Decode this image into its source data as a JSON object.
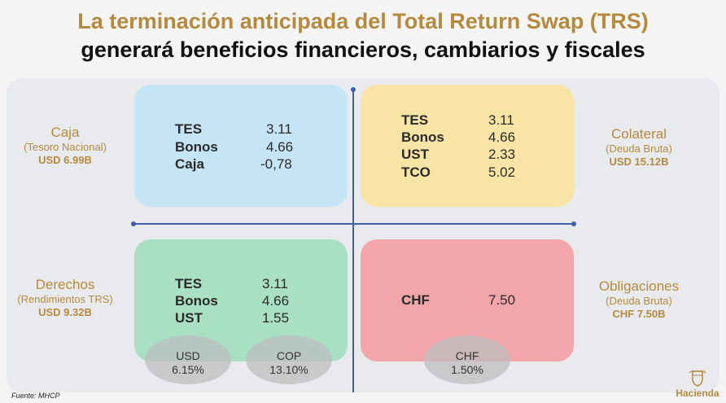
{
  "title": {
    "line1": "La terminación anticipada del Total Return Swap (TRS)",
    "line2": "generará beneficios financieros, cambiarios y fiscales"
  },
  "quadrants": {
    "top_left": {
      "rows": [
        {
          "label": "TES",
          "value": "3.11"
        },
        {
          "label": "Bonos",
          "value": "4.66"
        },
        {
          "label": "Caja",
          "value": "-0,78"
        }
      ]
    },
    "top_right": {
      "rows": [
        {
          "label": "TES",
          "value": "3.11"
        },
        {
          "label": "Bonos",
          "value": "4.66"
        },
        {
          "label": "UST",
          "value": "2.33"
        },
        {
          "label": "TCO",
          "value": "5.02"
        }
      ]
    },
    "bottom_left": {
      "rows": [
        {
          "label": "TES",
          "value": "3.11"
        },
        {
          "label": "Bonos",
          "value": "4.66"
        },
        {
          "label": "UST",
          "value": "1.55"
        }
      ]
    },
    "bottom_right": {
      "rows": [
        {
          "label": "CHF",
          "value": "7.50"
        }
      ]
    }
  },
  "side_labels": {
    "caja": {
      "name": "Caja",
      "sub": "(Tesoro Nacional)",
      "amount": "USD 6.99B"
    },
    "colateral": {
      "name": "Colateral",
      "sub": "(Deuda Bruta)",
      "amount": "USD 15.12B"
    },
    "derechos": {
      "name": "Derechos",
      "sub": "(Rendimientos TRS)",
      "amount": "USD 9.32B"
    },
    "obligaciones": {
      "name": "Obligaciones",
      "sub": "(Deuda Bruta)",
      "amount": "CHF 7.50B"
    }
  },
  "bubbles": [
    {
      "currency": "USD",
      "rate": "6.15%"
    },
    {
      "currency": "COP",
      "rate": "13.10%"
    },
    {
      "currency": "CHF",
      "rate": "1.50%"
    }
  ],
  "colors": {
    "gold": "#b48a3e",
    "blue_box": "#c5e4f6",
    "yellow_box": "#f8e5a6",
    "green_box": "#a9dfc3",
    "red_box": "#f3a6aa",
    "axis": "#3d5fa8"
  },
  "source": "Fuente: MHCP",
  "logo": {
    "text": "Hacienda",
    "icon": "coat-of-arms-icon"
  }
}
